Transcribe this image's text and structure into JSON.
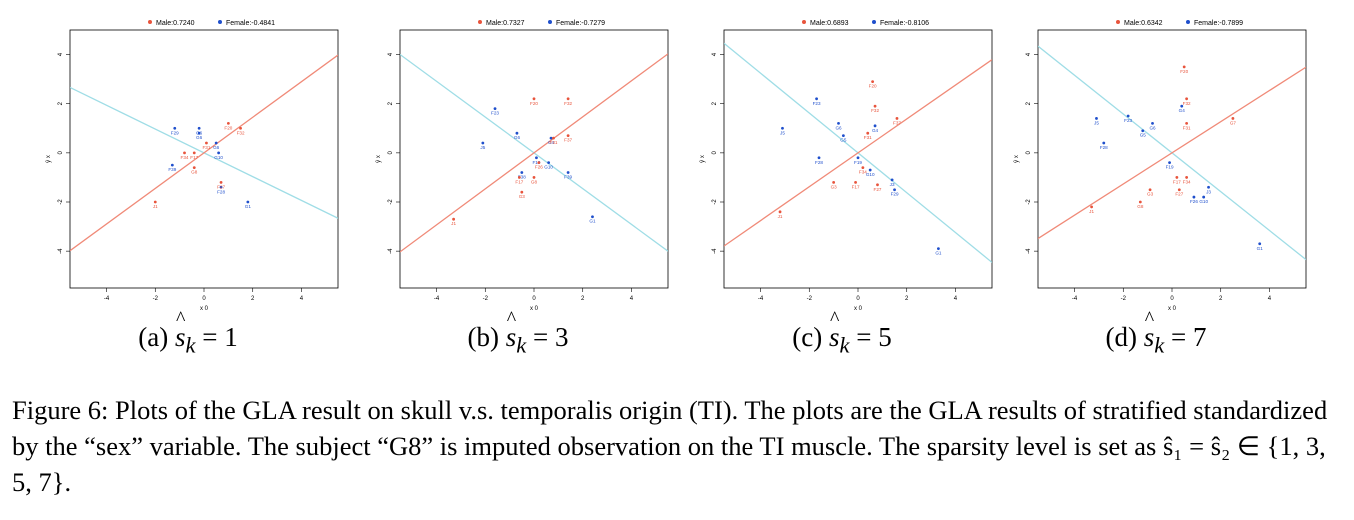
{
  "figure": {
    "caption": "Figure 6: Plots of the GLA result on skull v.s. temporalis origin (TI). The plots are the GLA results of stratified standardized by the “sex” variable. The subject “G8” is imputed observation on the TI muscle. The sparsity level is set as ŝ₁ = ŝ₂ ∈ {1, 3, 5, 7}.",
    "colors": {
      "male": "#e8543c",
      "female": "#1f4fcc",
      "male_line": "#f08a78",
      "female_line": "#9fdde6",
      "axis": "#000000"
    }
  },
  "chart_data": [
    {
      "type": "scatter",
      "caption_prefix": "(a) ",
      "caption_value": "= 1",
      "legend": {
        "placement": "top-center",
        "male": "Male:0.7240",
        "female": "Female:-0.4841"
      },
      "xlabel": "x 0",
      "ylabel": "ŷ x",
      "xlim": [
        -5.5,
        5.5
      ],
      "ylim": [
        -5.5,
        5.0
      ],
      "xticks": [
        -4,
        -2,
        0,
        2,
        4
      ],
      "yticks": [
        -4,
        -2,
        0,
        2,
        4
      ],
      "lines": {
        "male_slope": 0.724,
        "female_slope": -0.4841
      },
      "male_points": [
        {
          "label": "F20",
          "x": 1.0,
          "y": 1.2
        },
        {
          "label": "F32",
          "x": 1.5,
          "y": 1.0
        },
        {
          "label": "F31",
          "x": 0.1,
          "y": 0.4
        },
        {
          "label": "F34",
          "x": -0.8,
          "y": 0.0
        },
        {
          "label": "F17",
          "x": -0.4,
          "y": 0.0
        },
        {
          "label": "G8",
          "x": -0.4,
          "y": -0.6
        },
        {
          "label": "F27",
          "x": 0.7,
          "y": -1.2
        },
        {
          "label": "J1",
          "x": -2.0,
          "y": -2.0
        }
      ],
      "female_points": [
        {
          "label": "F29",
          "x": -1.2,
          "y": 1.0
        },
        {
          "label": "G6",
          "x": -0.2,
          "y": 1.0
        },
        {
          "label": "G6",
          "x": -0.2,
          "y": 0.8
        },
        {
          "label": "G6",
          "x": 0.5,
          "y": 0.4
        },
        {
          "label": "G10",
          "x": 0.6,
          "y": 0.0
        },
        {
          "label": "G1",
          "x": 1.8,
          "y": -2.0
        },
        {
          "label": "F28",
          "x": 0.7,
          "y": -1.4
        },
        {
          "label": "F39",
          "x": -1.3,
          "y": -0.5
        }
      ]
    },
    {
      "type": "scatter",
      "caption_prefix": "(b) ",
      "caption_value": "= 3",
      "legend": {
        "placement": "top-center",
        "male": "Male:0.7327",
        "female": "Female:-0.7279"
      },
      "xlabel": "x 0",
      "ylabel": "ŷ x",
      "xlim": [
        -5.5,
        5.5
      ],
      "ylim": [
        -5.5,
        5.0
      ],
      "xticks": [
        -4,
        -2,
        0,
        2,
        4
      ],
      "yticks": [
        -4,
        -2,
        0,
        2,
        4
      ],
      "lines": {
        "male_slope": 0.7327,
        "female_slope": -0.7279
      },
      "male_points": [
        {
          "label": "F20",
          "x": 0.0,
          "y": 2.2
        },
        {
          "label": "F32",
          "x": 1.4,
          "y": 2.2
        },
        {
          "label": "F31",
          "x": 0.8,
          "y": 0.6
        },
        {
          "label": "F37",
          "x": 1.4,
          "y": 0.7
        },
        {
          "label": "F26",
          "x": 0.2,
          "y": -0.4
        },
        {
          "label": "F17",
          "x": -0.6,
          "y": -1.0
        },
        {
          "label": "G8",
          "x": 0.0,
          "y": -1.0
        },
        {
          "label": "G3",
          "x": -0.5,
          "y": -1.6
        },
        {
          "label": "J1",
          "x": -3.3,
          "y": -2.7
        }
      ],
      "female_points": [
        {
          "label": "F23",
          "x": -1.6,
          "y": 1.8
        },
        {
          "label": "G6",
          "x": -0.7,
          "y": 0.8
        },
        {
          "label": "G4",
          "x": 0.7,
          "y": 0.6
        },
        {
          "label": "J5",
          "x": -2.1,
          "y": 0.4
        },
        {
          "label": "F19",
          "x": 0.1,
          "y": -0.2
        },
        {
          "label": "G10",
          "x": 0.6,
          "y": -0.4
        },
        {
          "label": "F38",
          "x": -0.5,
          "y": -0.8
        },
        {
          "label": "F39",
          "x": 1.4,
          "y": -0.8
        },
        {
          "label": "G1",
          "x": 2.4,
          "y": -2.6
        }
      ]
    },
    {
      "type": "scatter",
      "caption_prefix": "(c) ",
      "caption_value": "= 5",
      "legend": {
        "placement": "top-center",
        "male": "Male:0.6893",
        "female": "Female:-0.8106"
      },
      "xlabel": "x 0",
      "ylabel": "ŷ x",
      "xlim": [
        -5.5,
        5.5
      ],
      "ylim": [
        -5.5,
        5.0
      ],
      "xticks": [
        -4,
        -2,
        0,
        2,
        4
      ],
      "yticks": [
        -4,
        -2,
        0,
        2,
        4
      ],
      "lines": {
        "male_slope": 0.6893,
        "female_slope": -0.8106
      },
      "male_points": [
        {
          "label": "F20",
          "x": 0.6,
          "y": 2.9
        },
        {
          "label": "F32",
          "x": 0.7,
          "y": 1.9
        },
        {
          "label": "F37",
          "x": 1.6,
          "y": 1.4
        },
        {
          "label": "F31",
          "x": 0.4,
          "y": 0.8
        },
        {
          "label": "F34",
          "x": 0.2,
          "y": -0.6
        },
        {
          "label": "F17",
          "x": -0.1,
          "y": -1.2
        },
        {
          "label": "G3",
          "x": -1.0,
          "y": -1.2
        },
        {
          "label": "F27",
          "x": 0.8,
          "y": -1.3
        },
        {
          "label": "J1",
          "x": -3.2,
          "y": -2.4
        }
      ],
      "female_points": [
        {
          "label": "F23",
          "x": -1.7,
          "y": 2.2
        },
        {
          "label": "G6",
          "x": -0.8,
          "y": 1.2
        },
        {
          "label": "G4",
          "x": 0.7,
          "y": 1.1
        },
        {
          "label": "G5",
          "x": -0.6,
          "y": 0.7
        },
        {
          "label": "J5",
          "x": -3.1,
          "y": 1.0
        },
        {
          "label": "F28",
          "x": -1.6,
          "y": -0.2
        },
        {
          "label": "F19",
          "x": 0.0,
          "y": -0.2
        },
        {
          "label": "G10",
          "x": 0.5,
          "y": -0.7
        },
        {
          "label": "J3",
          "x": 1.4,
          "y": -1.1
        },
        {
          "label": "F29",
          "x": 1.5,
          "y": -1.5
        },
        {
          "label": "G1",
          "x": 3.3,
          "y": -3.9
        }
      ]
    },
    {
      "type": "scatter",
      "caption_prefix": "(d) ",
      "caption_value": "= 7",
      "legend": {
        "placement": "top-center",
        "male": "Male:0.6342",
        "female": "Female:-0.7899"
      },
      "xlabel": "x 0",
      "ylabel": "ŷ x",
      "xlim": [
        -5.5,
        5.5
      ],
      "ylim": [
        -5.5,
        5.0
      ],
      "xticks": [
        -4,
        -2,
        0,
        2,
        4
      ],
      "yticks": [
        -4,
        -2,
        0,
        2,
        4
      ],
      "lines": {
        "male_slope": 0.6342,
        "female_slope": -0.7899
      },
      "male_points": [
        {
          "label": "F20",
          "x": 0.5,
          "y": 3.5
        },
        {
          "label": "F32",
          "x": 0.6,
          "y": 2.2
        },
        {
          "label": "F31",
          "x": 0.6,
          "y": 1.2
        },
        {
          "label": "G7",
          "x": 2.5,
          "y": 1.4
        },
        {
          "label": "F17",
          "x": 0.2,
          "y": -1.0
        },
        {
          "label": "F34",
          "x": 0.6,
          "y": -1.0
        },
        {
          "label": "G3",
          "x": -0.9,
          "y": -1.5
        },
        {
          "label": "F27",
          "x": 0.3,
          "y": -1.5
        },
        {
          "label": "G8",
          "x": -1.3,
          "y": -2.0
        },
        {
          "label": "J1",
          "x": -3.3,
          "y": -2.2
        }
      ],
      "female_points": [
        {
          "label": "F23",
          "x": -1.8,
          "y": 1.5
        },
        {
          "label": "J5",
          "x": -3.1,
          "y": 1.4
        },
        {
          "label": "G6",
          "x": -0.8,
          "y": 1.2
        },
        {
          "label": "G5",
          "x": -1.2,
          "y": 0.9
        },
        {
          "label": "G4",
          "x": 0.4,
          "y": 1.9
        },
        {
          "label": "F28",
          "x": -2.8,
          "y": 0.4
        },
        {
          "label": "F19",
          "x": -0.1,
          "y": -0.4
        },
        {
          "label": "J3",
          "x": 1.5,
          "y": -1.4
        },
        {
          "label": "F26",
          "x": 0.9,
          "y": -1.8
        },
        {
          "label": "G10",
          "x": 1.3,
          "y": -1.8
        },
        {
          "label": "G1",
          "x": 3.6,
          "y": -3.7
        }
      ]
    }
  ]
}
